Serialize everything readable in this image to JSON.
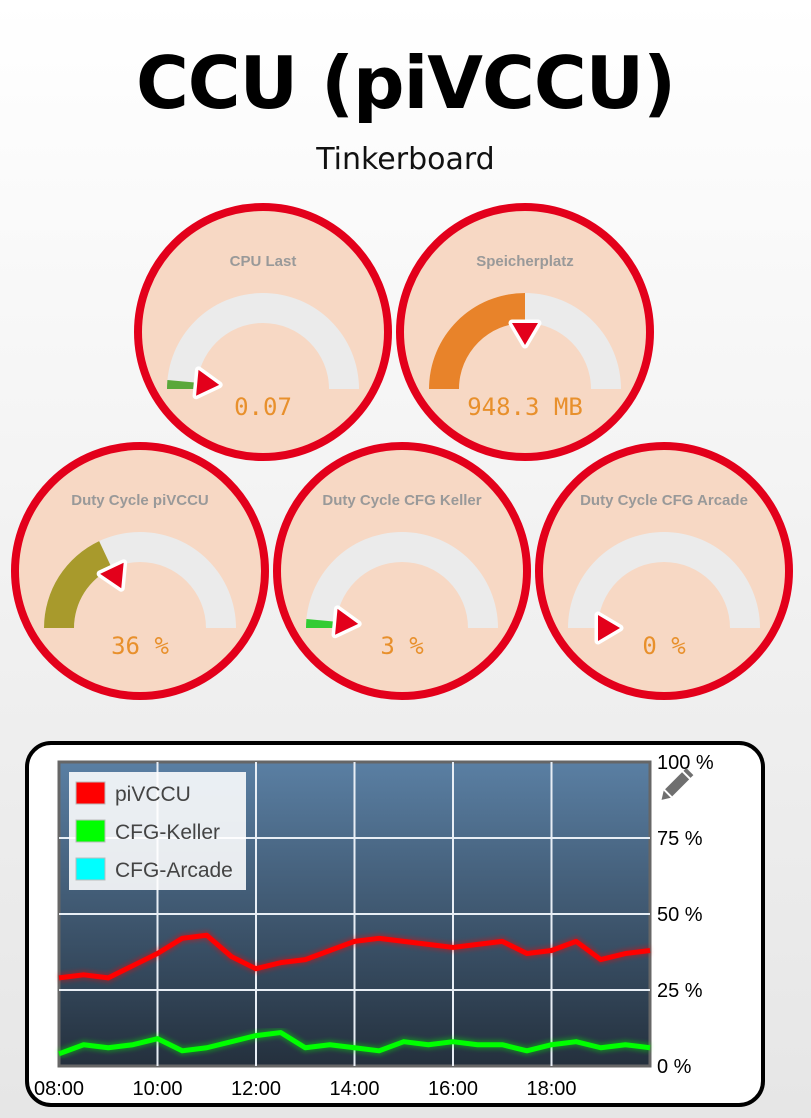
{
  "header": {
    "title": "CCU (piVCCU)",
    "subtitle": "Tinkerboard"
  },
  "colors": {
    "ring": "#e3001b",
    "gauge_face": "#f7d8c4",
    "track": "#ebebeb",
    "needle": "#e3001b",
    "value_text": "#e8902c",
    "label_text": "#999999"
  },
  "gauges": [
    {
      "label": "CPU Last",
      "value_text": "0.07",
      "fill_color": "#5aa83a",
      "fraction": 0.03
    },
    {
      "label": "Speicherplatz",
      "value_text": "948.3 MB",
      "fill_color": "#e8832a",
      "fraction": 0.5
    },
    {
      "label": "Duty Cycle piVCCU",
      "value_text": "36 %",
      "fill_color": "#a89a2c",
      "fraction": 0.36
    },
    {
      "label": "Duty Cycle CFG Keller",
      "value_text": "3 %",
      "fill_color": "#33cc33",
      "fraction": 0.03
    },
    {
      "label": "Duty Cycle CFG Arcade",
      "value_text": "0 %",
      "fill_color": "#33cc33",
      "fraction": 0.0
    }
  ],
  "edit_icon": "pencil-icon",
  "chart_data": {
    "type": "line",
    "title": "",
    "xlabel": "",
    "ylabel": "",
    "x_ticks": [
      "08:00",
      "10:00",
      "12:00",
      "14:00",
      "16:00",
      "18:00"
    ],
    "y_ticks": [
      "0 %",
      "25 %",
      "50 %",
      "75 %",
      "100 %"
    ],
    "xlim": [
      8,
      20
    ],
    "ylim": [
      0,
      100
    ],
    "grid": true,
    "legend_position": "top-left",
    "series": [
      {
        "name": "piVCCU",
        "color": "#ff0000",
        "x": [
          8.0,
          8.5,
          9.0,
          9.5,
          10.0,
          10.5,
          11.0,
          11.5,
          12.0,
          12.5,
          13.0,
          13.5,
          14.0,
          14.5,
          15.0,
          15.5,
          16.0,
          16.5,
          17.0,
          17.5,
          18.0,
          18.5,
          19.0,
          19.5,
          20.0
        ],
        "values": [
          29,
          30,
          29,
          33,
          37,
          42,
          43,
          36,
          32,
          34,
          35,
          38,
          41,
          42,
          41,
          40,
          39,
          40,
          41,
          37,
          38,
          41,
          35,
          37,
          38
        ]
      },
      {
        "name": "CFG-Keller",
        "color": "#00ff00",
        "x": [
          8.0,
          8.5,
          9.0,
          9.5,
          10.0,
          10.5,
          11.0,
          11.5,
          12.0,
          12.5,
          13.0,
          13.5,
          14.0,
          14.5,
          15.0,
          15.5,
          16.0,
          16.5,
          17.0,
          17.5,
          18.0,
          18.5,
          19.0,
          19.5,
          20.0
        ],
        "values": [
          4,
          7,
          6,
          7,
          9,
          5,
          6,
          8,
          10,
          11,
          6,
          7,
          6,
          5,
          8,
          7,
          8,
          7,
          7,
          5,
          7,
          8,
          6,
          7,
          6
        ]
      },
      {
        "name": "CFG-Arcade",
        "color": "#00ffff",
        "x": [],
        "values": []
      }
    ]
  }
}
